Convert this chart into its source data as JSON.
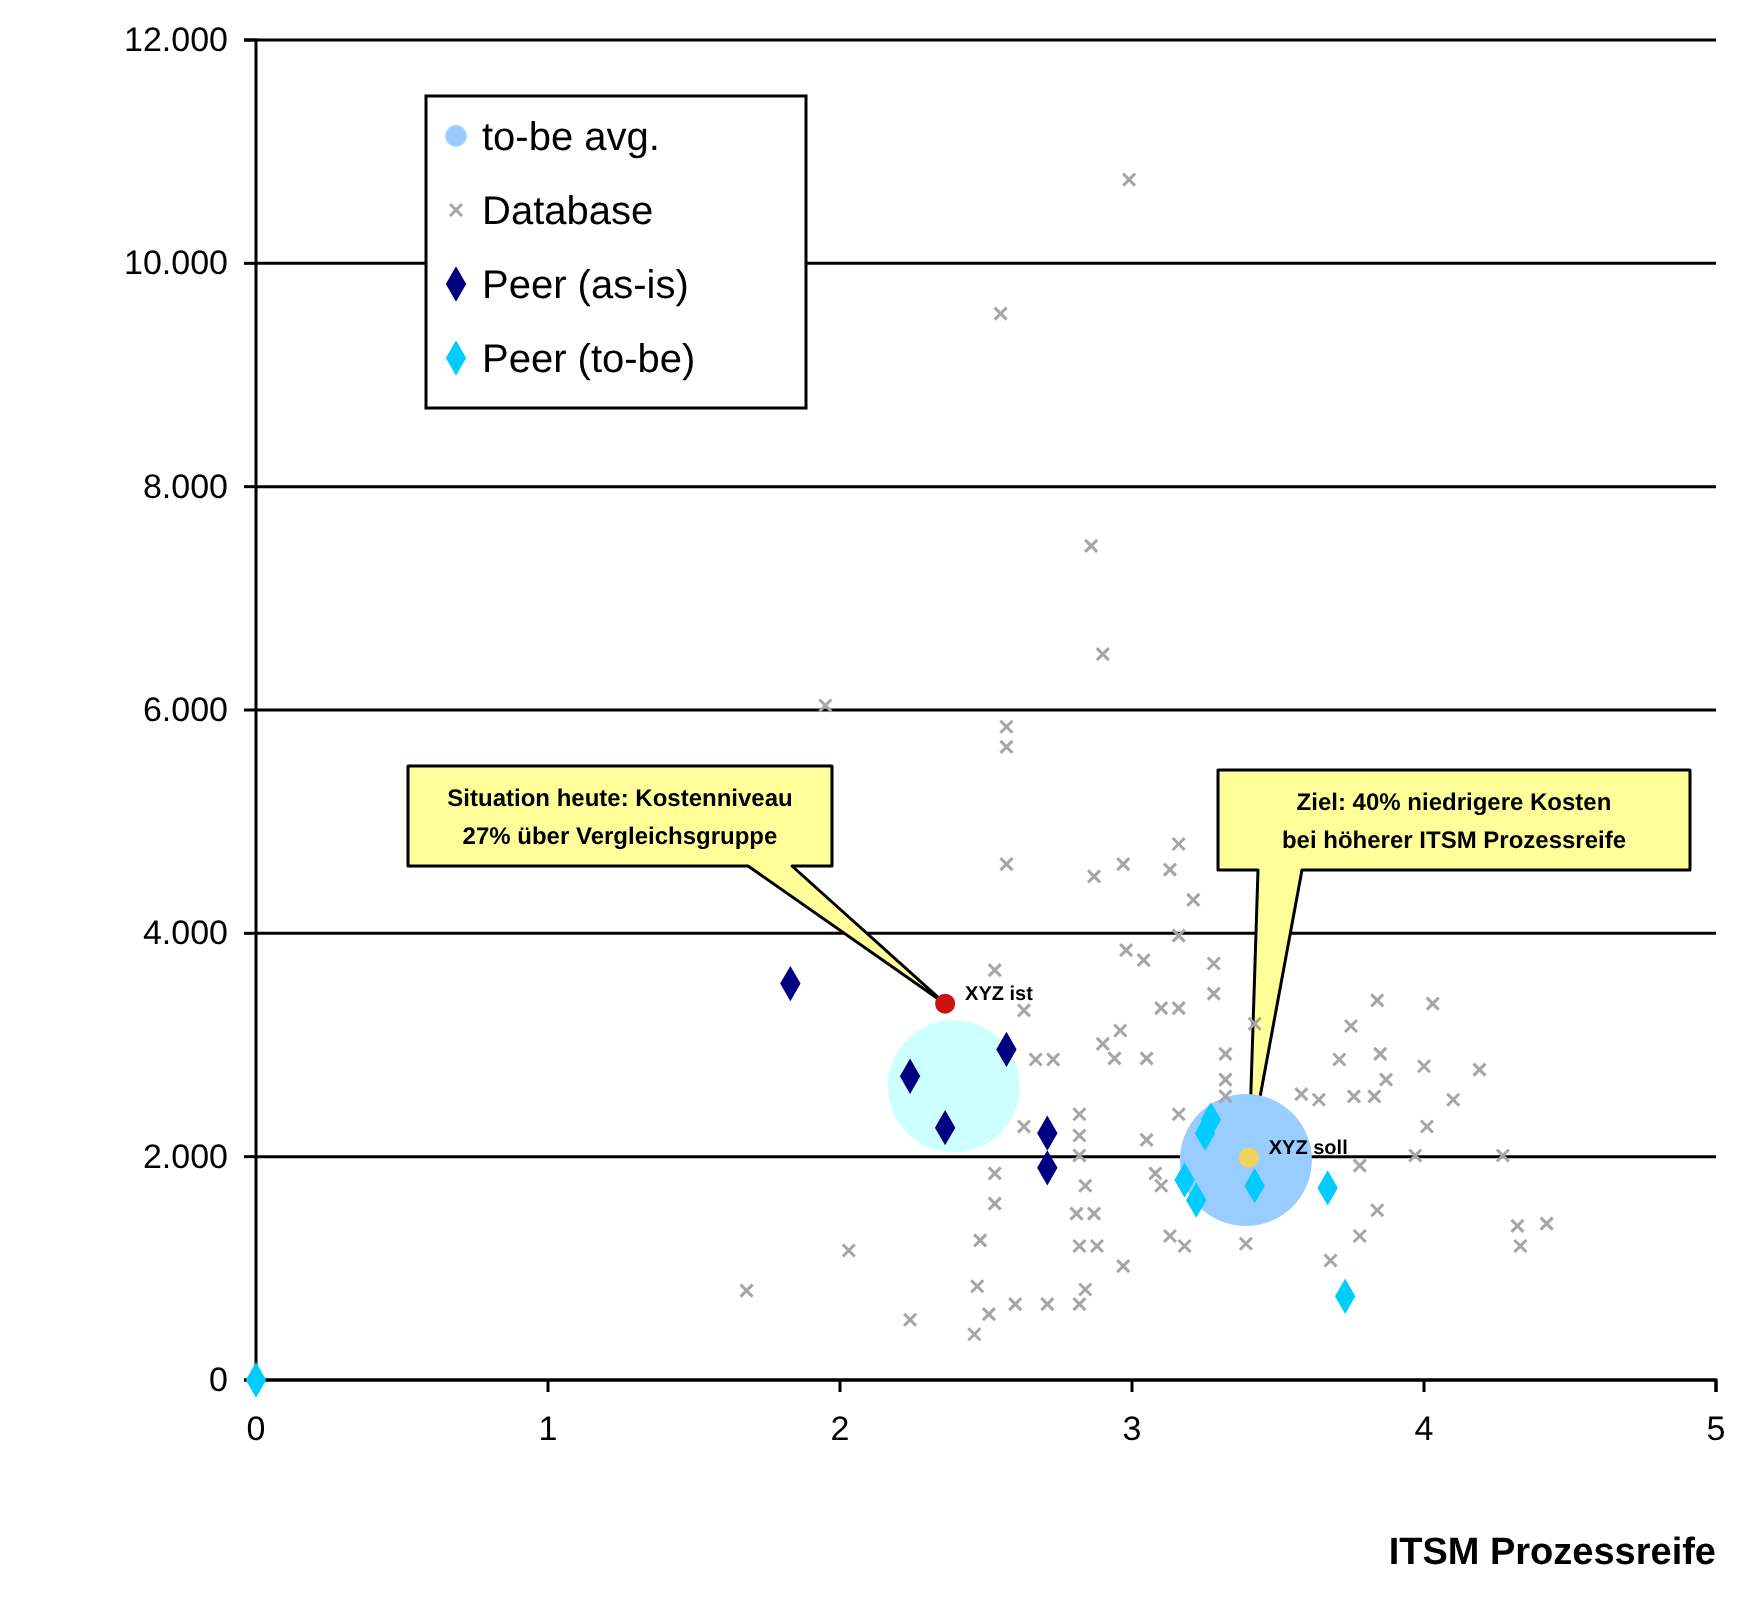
{
  "chart_data": {
    "type": "scatter",
    "xlabel": "ITSM Prozessreife",
    "xlim": [
      0,
      5
    ],
    "xticks": [
      0,
      1,
      2,
      3,
      4,
      5
    ],
    "ylim": [
      0,
      12000
    ],
    "yticks": [
      0,
      {
        "value": 2000,
        "label": "2.000"
      },
      {
        "value": 4000,
        "label": "4.000"
      },
      {
        "value": 6000,
        "label": "6.000"
      },
      {
        "value": 8000,
        "label": "8.000"
      },
      {
        "value": 10000,
        "label": "10.000"
      },
      {
        "value": 12000,
        "label": "12.000"
      }
    ],
    "grid": "y",
    "legend": "top left",
    "series": [
      {
        "color": "#ccffff",
        "marker": "circle",
        "x": [
          2.39
        ],
        "values": [
          2630
        ]
      },
      {
        "name": "to-be avg.",
        "color": "#99ccff",
        "marker": "circle",
        "x": [
          3.39
        ],
        "values": [
          1970
        ]
      },
      {
        "name": "Database",
        "color": "#a6a6a6",
        "marker": "cross",
        "x": [
          2.99,
          2.55,
          2.86,
          2.9,
          1.95,
          2.57,
          2.57,
          2.57,
          1.68,
          2.03,
          2.24,
          3.16,
          2.87,
          2.97,
          3.13,
          3.21,
          3.16,
          2.98,
          3.04,
          2.53,
          3.28,
          3.28,
          3.1,
          3.16,
          2.63,
          2.96,
          2.9,
          2.94,
          3.05,
          2.67,
          2.73,
          3.32,
          3.32,
          3.32,
          3.42,
          3.75,
          3.84,
          4.03,
          3.71,
          3.85,
          3.87,
          4.0,
          4.19,
          3.64,
          3.76,
          3.83,
          4.01,
          4.1,
          3.58,
          2.82,
          2.82,
          2.63,
          3.16,
          3.05,
          2.82,
          3.78,
          3.97,
          4.27,
          2.53,
          3.08,
          3.1,
          2.84,
          2.53,
          3.84,
          2.81,
          2.87,
          2.82,
          2.88,
          3.13,
          3.18,
          3.39,
          2.48,
          3.78,
          4.32,
          4.42,
          4.33,
          3.68,
          2.97,
          2.47,
          2.84,
          2.82,
          2.6,
          2.51,
          2.71,
          2.46
        ],
        "values": [
          10750,
          9550,
          7470,
          6500,
          6040,
          5850,
          5670,
          4620,
          800,
          1160,
          540,
          4800,
          4510,
          4620,
          4570,
          4300,
          3980,
          3850,
          3760,
          3670,
          3730,
          3460,
          3330,
          3330,
          3310,
          3130,
          3010,
          2880,
          2880,
          2870,
          2870,
          2920,
          2690,
          2540,
          3190,
          3170,
          3400,
          3370,
          2870,
          2920,
          2690,
          2810,
          2780,
          2510,
          2540,
          2540,
          2270,
          2510,
          2560,
          2380,
          2190,
          2270,
          2380,
          2150,
          2010,
          1920,
          2010,
          2010,
          1850,
          1850,
          1740,
          1740,
          1580,
          1520,
          1490,
          1490,
          1200,
          1200,
          1290,
          1200,
          1220,
          1250,
          1290,
          1380,
          1400,
          1200,
          1070,
          1020,
          840,
          810,
          680,
          680,
          590,
          680,
          410
        ]
      },
      {
        "name": "Peer (as-is)",
        "color": "#000080",
        "marker": "diamond",
        "x": [
          1.83,
          2.57,
          2.24,
          2.36,
          2.71,
          2.71
        ],
        "values": [
          3550,
          2960,
          2720,
          2260,
          2210,
          1900
        ]
      },
      {
        "name": "Peer (to-be)",
        "color": "#00ccff",
        "marker": "diamond",
        "x": [
          0,
          3.25,
          3.27,
          3.18,
          3.22,
          3.42,
          3.67,
          3.73
        ],
        "values": [
          0,
          2210,
          2330,
          1790,
          1610,
          1740,
          1720,
          750
        ]
      },
      {
        "color": "#cc1111",
        "marker": "circle",
        "x": [
          2.36
        ],
        "values": [
          3370
        ]
      },
      {
        "color": "#f2d35a",
        "marker": "circle",
        "x": [
          3.4
        ],
        "values": [
          1990
        ]
      }
    ],
    "annotations": [
      "Situation heute: Kostenniveau 27% über Vergleichsgruppe",
      "Ziel: 40% niedrigere Kosten bei höherer ITSM Prozessreife",
      {
        "text": "XYZ ist",
        "x": 2.36,
        "y": 3370
      },
      {
        "text": "XYZ soll",
        "x": 3.4,
        "y": 1990
      }
    ]
  }
}
